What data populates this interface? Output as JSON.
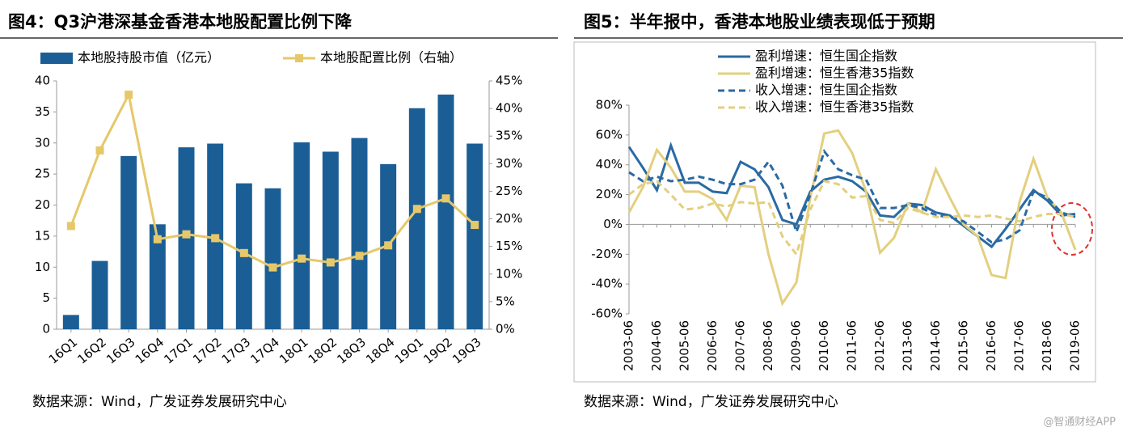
{
  "chart_data": [
    {
      "type": "bar",
      "title": "图4：Q3沪港深基金香港本地股配置比例下降",
      "categories": [
        "16Q1",
        "16Q2",
        "16Q3",
        "16Q4",
        "17Q1",
        "17Q2",
        "17Q3",
        "17Q4",
        "18Q1",
        "18Q2",
        "18Q3",
        "18Q4",
        "19Q1",
        "19Q2",
        "19Q3"
      ],
      "series": [
        {
          "name": "本地股持股市值（亿元）",
          "type": "bar",
          "color": "#1b5e96",
          "values": [
            2.3,
            11,
            27.9,
            16.9,
            29.3,
            29.9,
            23.5,
            22.7,
            30.1,
            28.6,
            30.8,
            26.6,
            35.6,
            37.8,
            29.9
          ]
        },
        {
          "name": "本地股配置比例（右轴）",
          "type": "line",
          "axis": "y2",
          "marker": "square",
          "color": "#e6c86a",
          "values": [
            18.7,
            32.4,
            42.5,
            16.3,
            17.2,
            16.5,
            13.8,
            11.2,
            12.8,
            12.1,
            13.3,
            15.2,
            21.8,
            23.7,
            18.9
          ]
        }
      ],
      "ylim": [
        0,
        40
      ],
      "yticks": [
        0,
        5,
        10,
        15,
        20,
        25,
        30,
        35,
        40
      ],
      "y2lim": [
        0,
        45
      ],
      "y2ticks": [
        {
          "value": 0,
          "label": "0%"
        },
        {
          "value": 5,
          "label": "5%"
        },
        {
          "value": 10,
          "label": "10%"
        },
        {
          "value": 15,
          "label": "15%"
        },
        {
          "value": 20,
          "label": "20%"
        },
        {
          "value": 25,
          "label": "25%"
        },
        {
          "value": 30,
          "label": "30%"
        },
        {
          "value": 35,
          "label": "35%"
        },
        {
          "value": 40,
          "label": "40%"
        },
        {
          "value": 45,
          "label": "45%"
        }
      ],
      "legend": "top",
      "source": "数据来源：Wind，广发证券发展研究中心"
    },
    {
      "type": "line",
      "title": "图5：半年报中，香港本地股业绩表现低于预期",
      "categories": [
        "2003-06",
        null,
        "2004-06",
        null,
        "2005-06",
        null,
        "2006-06",
        null,
        "2007-06",
        null,
        "2008-06",
        null,
        "2009-06",
        null,
        "2010-06",
        null,
        "2011-06",
        null,
        "2012-06",
        null,
        "2013-06",
        null,
        "2014-06",
        null,
        "2015-06",
        null,
        "2016-06",
        null,
        "2017-06",
        null,
        "2018-06",
        null,
        "2019-06"
      ],
      "series": [
        {
          "name": "盈利增速：恒生国企指数",
          "color": "#2a6aa3",
          "dash": false,
          "values": [
            52,
            38,
            23,
            53,
            28,
            28,
            22,
            21,
            42,
            37,
            25,
            3,
            0,
            22,
            30,
            32,
            29,
            22,
            6,
            5,
            14,
            13,
            8,
            6,
            -1,
            -8,
            -15,
            -3,
            10,
            23,
            16,
            6,
            7
          ]
        },
        {
          "name": "盈利增速：恒生香港35指数",
          "color": "#e3cf7f",
          "dash": false,
          "values": [
            8,
            25,
            50,
            38,
            22,
            22,
            17,
            3,
            26,
            25,
            -20,
            -53,
            -39,
            18,
            61,
            63,
            48,
            22,
            -19,
            -9,
            14,
            8,
            37,
            18,
            0,
            -8,
            -34,
            -36,
            15,
            44,
            18,
            8,
            -17
          ]
        },
        {
          "name": "收入增速：恒生国企指数",
          "color": "#2a6aa3",
          "dash": true,
          "values": [
            35,
            29,
            32,
            29,
            30,
            32,
            30,
            27,
            27,
            30,
            42,
            26,
            -5,
            20,
            49,
            37,
            33,
            30,
            11,
            11,
            13,
            11,
            6,
            5,
            2,
            -5,
            -12,
            -10,
            -4,
            22,
            18,
            8,
            5
          ]
        },
        {
          "name": "收入增速：恒生香港35指数",
          "color": "#e3cf7f",
          "dash": true,
          "values": [
            20,
            27,
            29,
            20,
            10,
            11,
            14,
            12,
            15,
            14,
            15,
            -8,
            -20,
            10,
            29,
            27,
            18,
            19,
            3,
            1,
            11,
            8,
            5,
            5,
            6,
            5,
            6,
            4,
            2,
            5,
            7,
            7,
            5
          ]
        }
      ],
      "ylim": [
        -60,
        80
      ],
      "yticks": [
        {
          "value": -60,
          "label": "-60%"
        },
        {
          "value": -40,
          "label": "-40%"
        },
        {
          "value": -20,
          "label": "-20%"
        },
        {
          "value": 0,
          "label": "0%"
        },
        {
          "value": 20,
          "label": "20%"
        },
        {
          "value": 40,
          "label": "40%"
        },
        {
          "value": 60,
          "label": "60%"
        },
        {
          "value": 80,
          "label": "80%"
        }
      ],
      "legend": "top-left",
      "source": "数据来源：Wind，广发证券发展研究中心"
    }
  ],
  "watermark": "@智通财经APP"
}
